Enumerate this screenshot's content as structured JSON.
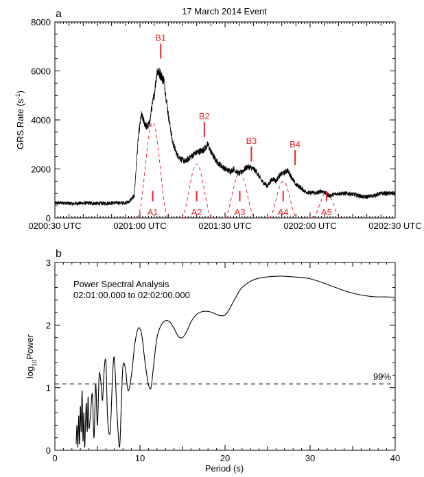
{
  "chart_data": [
    {
      "panel_label": "a",
      "type": "line",
      "title": "17 March 2014 Event",
      "xlabel": "",
      "ylabel": "GRS Rate (s",
      "ylabel_sup": "-1",
      "ylabel_close": ")",
      "ylim": [
        0,
        8000
      ],
      "xlim_seconds_after_0200": [
        30,
        150
      ],
      "yticks": [
        0,
        2000,
        4000,
        6000,
        8000
      ],
      "xticks": [
        {
          "t": 30,
          "label": "0200:30 UTC"
        },
        {
          "t": 60,
          "label": "0201:00 UTC"
        },
        {
          "t": 90,
          "label": "0201:30 UTC"
        },
        {
          "t": 120,
          "label": "0202:00 UTC"
        },
        {
          "t": 150,
          "label": "0202:30 UTC"
        }
      ],
      "series": [
        {
          "x": [
            30,
            33,
            36,
            39,
            42,
            45,
            48,
            51,
            54,
            56,
            58,
            58.5,
            59.5,
            60.5,
            61.5,
            62.5,
            63.5,
            64,
            65,
            66,
            67,
            68.5,
            70,
            71.5,
            73,
            74.5,
            76,
            77.5,
            79,
            80.5,
            82,
            83,
            84,
            85,
            86,
            87,
            88,
            89,
            90,
            91,
            92,
            93,
            94,
            95,
            96,
            97,
            98,
            99,
            100,
            101,
            102,
            103,
            104,
            105,
            106,
            107,
            108,
            109,
            110,
            111,
            112,
            113,
            114,
            115,
            116,
            117,
            118,
            119,
            120,
            121,
            122,
            123,
            124,
            125,
            126,
            127,
            128,
            130,
            133,
            136,
            139,
            142,
            145,
            148,
            150
          ],
          "y": [
            600,
            620,
            580,
            600,
            610,
            590,
            600,
            620,
            610,
            650,
            900,
            1800,
            3400,
            4200,
            3900,
            3700,
            3900,
            4400,
            5000,
            6000,
            5900,
            5600,
            4200,
            3100,
            2600,
            2400,
            2300,
            2450,
            2600,
            2700,
            2750,
            2850,
            3000,
            2700,
            2500,
            2300,
            2200,
            2100,
            2000,
            1950,
            1900,
            2000,
            1900,
            1800,
            1900,
            2000,
            2100,
            2050,
            2000,
            1900,
            1700,
            1500,
            1400,
            1300,
            1500,
            1600,
            1500,
            1700,
            1800,
            1850,
            1950,
            1750,
            1550,
            1350,
            1300,
            1200,
            1100,
            1050,
            1000,
            1050,
            1000,
            1050,
            1100,
            1050,
            950,
            900,
            950,
            1000,
            1000,
            950,
            850,
            900,
            1000,
            1000,
            1000
          ]
        }
      ],
      "annotations": [
        {
          "label": "B1",
          "t": 67.3,
          "y_tip": 6500
        },
        {
          "label": "B2",
          "t": 82.7,
          "y_tip": 3300
        },
        {
          "label": "B3",
          "t": 99.3,
          "y_tip": 2300
        },
        {
          "label": "B4",
          "t": 114.7,
          "y_tip": 2150
        },
        {
          "label": "A1",
          "t": 64.5,
          "y_tip": 1100
        },
        {
          "label": "A2",
          "t": 80,
          "y_tip": 1100
        },
        {
          "label": "A3",
          "t": 95.2,
          "y_tip": 1100
        },
        {
          "label": "A4",
          "t": 110.5,
          "y_tip": 1100
        },
        {
          "label": "A5",
          "t": 125.8,
          "y_tip": 1100
        }
      ],
      "dashed_humps": [
        {
          "center": 64.5,
          "half_width": 5.5,
          "peak": 3900
        },
        {
          "center": 80,
          "half_width": 5.5,
          "peak": 2200
        },
        {
          "center": 95.2,
          "half_width": 5.5,
          "peak": 1850
        },
        {
          "center": 110.5,
          "half_width": 5,
          "peak": 1500
        },
        {
          "center": 125.8,
          "half_width": 5,
          "peak": 1050
        }
      ],
      "annotation_color": "#e8262c"
    },
    {
      "panel_label": "b",
      "type": "line",
      "title": "",
      "text_lines": [
        "Power Spectral Analysis",
        "02:01:00.000 to 02:02:00.000"
      ],
      "xlabel": "Period (s)",
      "ylabel": "log",
      "ylabel_sub": "10",
      "ylabel_rest": "Power",
      "xlim": [
        0,
        40
      ],
      "ylim": [
        0,
        3
      ],
      "xticks": [
        0,
        10,
        20,
        30,
        40
      ],
      "yticks": [
        0,
        1,
        2,
        3
      ],
      "threshold": {
        "y": 1.06,
        "label": "99%"
      },
      "series": [
        {
          "x": [
            2.5,
            2.6,
            2.7,
            2.8,
            2.9,
            3.0,
            3.1,
            3.2,
            3.3,
            3.4,
            3.5,
            3.6,
            3.7,
            3.8,
            3.9,
            4.0,
            4.2,
            4.4,
            4.6,
            4.8,
            5.0,
            5.2,
            5.4,
            5.6,
            5.8,
            6.0,
            6.2,
            6.5,
            6.8,
            7.0,
            7.3,
            7.6,
            7.8,
            8.0,
            8.3,
            8.6,
            9.0,
            9.4,
            9.8,
            10.2,
            10.6,
            11.0,
            11.3,
            11.6,
            12.0,
            12.5,
            13.0,
            13.5,
            14.0,
            14.5,
            15.0,
            15.5,
            16.0,
            16.5,
            17.0,
            17.5,
            18.0,
            18.5,
            19.0,
            19.5,
            20.0,
            20.5,
            21.0,
            21.5,
            22.0,
            23.0,
            24.0,
            25.0,
            26.0,
            27.0,
            28.0,
            29.0,
            30.0,
            31.0,
            32.0,
            33.0,
            34.0,
            35.0,
            36.0,
            37.0,
            38.0,
            39.0,
            40.0
          ],
          "y": [
            0.1,
            0.4,
            0.05,
            0.55,
            0.1,
            0.7,
            0.3,
            0.95,
            0.15,
            0.6,
            0.05,
            0.45,
            0.75,
            0.3,
            0.85,
            0.35,
            0.6,
            0.9,
            0.2,
            1.05,
            0.4,
            1.2,
            1.1,
            0.8,
            1.3,
            1.4,
            0.5,
            0.3,
            1.25,
            1.45,
            0.6,
            0.05,
            0.7,
            1.35,
            1.3,
            0.95,
            1.2,
            1.7,
            1.95,
            1.85,
            1.4,
            1.05,
            1.0,
            1.35,
            1.8,
            2.0,
            2.07,
            2.05,
            1.95,
            1.82,
            1.8,
            1.9,
            2.05,
            2.15,
            2.2,
            2.22,
            2.22,
            2.2,
            2.17,
            2.15,
            2.16,
            2.25,
            2.38,
            2.5,
            2.6,
            2.7,
            2.75,
            2.77,
            2.78,
            2.78,
            2.77,
            2.76,
            2.74,
            2.7,
            2.65,
            2.6,
            2.55,
            2.51,
            2.48,
            2.46,
            2.45,
            2.45,
            2.44
          ]
        }
      ]
    }
  ]
}
